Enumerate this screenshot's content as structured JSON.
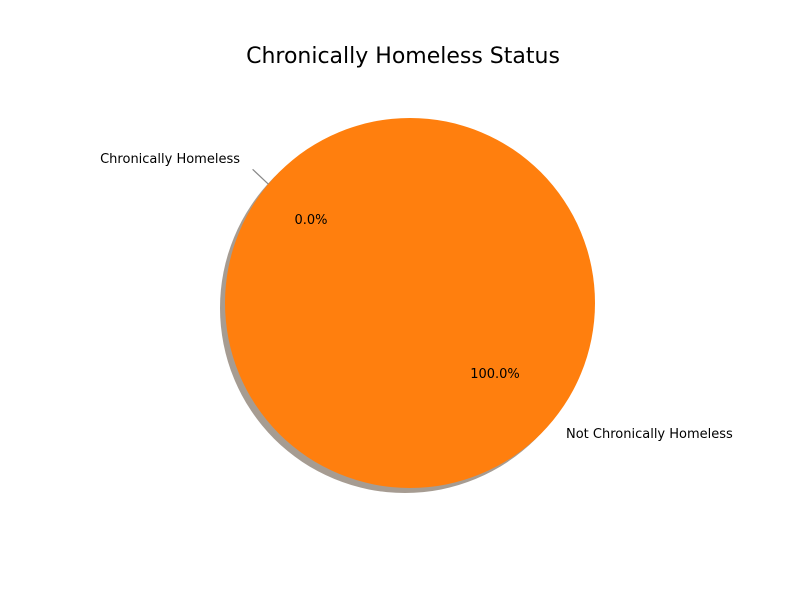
{
  "chart_data": {
    "type": "pie",
    "title": "Chronically Homeless Status",
    "categories": [
      "Chronically Homeless",
      "Not Chronically Homeless"
    ],
    "values": [
      0.0,
      100.0
    ],
    "value_labels": [
      "0.0%",
      "100.0%"
    ],
    "colors": [
      "#1f77b4",
      "#ff7f0e"
    ],
    "shadow": true,
    "start_angle_deg": 140,
    "legend": "none"
  }
}
